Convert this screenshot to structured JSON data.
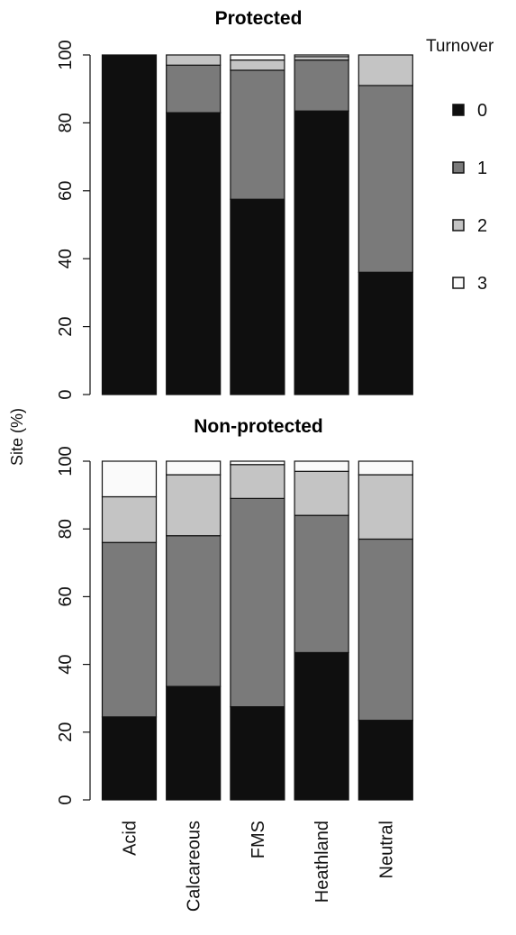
{
  "chart_data": {
    "type": "bar",
    "stacked": true,
    "ylabel": "Site (%)",
    "ylim": [
      0,
      100
    ],
    "yticks": [
      0,
      20,
      40,
      60,
      80,
      100
    ],
    "categories": [
      "Acid",
      "Calcareous",
      "FMS",
      "Heathland",
      "Neutral"
    ],
    "legend": {
      "title": "Turnover",
      "placement": "right",
      "entries": [
        {
          "label": "0",
          "color": "#0f0f0f"
        },
        {
          "label": "1",
          "color": "#7a7a7a"
        },
        {
          "label": "2",
          "color": "#c4c4c4"
        },
        {
          "label": "3",
          "color": "#fafafa"
        }
      ]
    },
    "panels": [
      {
        "title": "Protected",
        "series": [
          {
            "name": "0",
            "values": [
              100,
              83,
              57.5,
              83.5,
              36
            ]
          },
          {
            "name": "1",
            "values": [
              0,
              14,
              38,
              15,
              55
            ]
          },
          {
            "name": "2",
            "values": [
              0,
              3,
              3,
              1,
              9
            ]
          },
          {
            "name": "3",
            "values": [
              0,
              0,
              1.5,
              0.5,
              0
            ]
          }
        ]
      },
      {
        "title": "Non-protected",
        "series": [
          {
            "name": "0",
            "values": [
              24.5,
              33.5,
              27.5,
              43.5,
              23.5
            ]
          },
          {
            "name": "1",
            "values": [
              51.5,
              44.5,
              61.5,
              40.5,
              53.5
            ]
          },
          {
            "name": "2",
            "values": [
              13.5,
              18,
              10,
              13,
              19
            ]
          },
          {
            "name": "3",
            "values": [
              10.5,
              4,
              1,
              3,
              4
            ]
          }
        ]
      }
    ]
  }
}
